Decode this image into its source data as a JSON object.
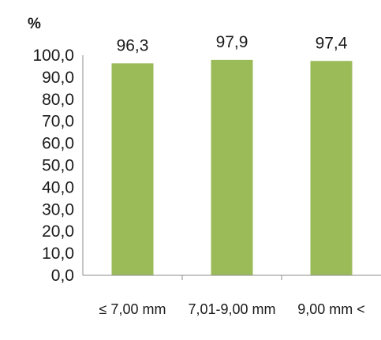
{
  "chart_data": {
    "type": "bar",
    "ylabel": "%",
    "categories": [
      "≤ 7,00 mm",
      "7,01-9,00 mm",
      "9,00 mm <"
    ],
    "values": [
      96.3,
      97.9,
      97.4
    ],
    "value_labels": [
      "96,3",
      "97,9",
      "97,4"
    ],
    "yticks": [
      "0,0",
      "10,0",
      "20,0",
      "30,0",
      "40,0",
      "50,0",
      "60,0",
      "70,0",
      "80,0",
      "90,0",
      "100,0"
    ],
    "ylim": [
      0,
      100
    ],
    "grid": false,
    "legend": "none",
    "bar_color": "#9bbb59"
  }
}
